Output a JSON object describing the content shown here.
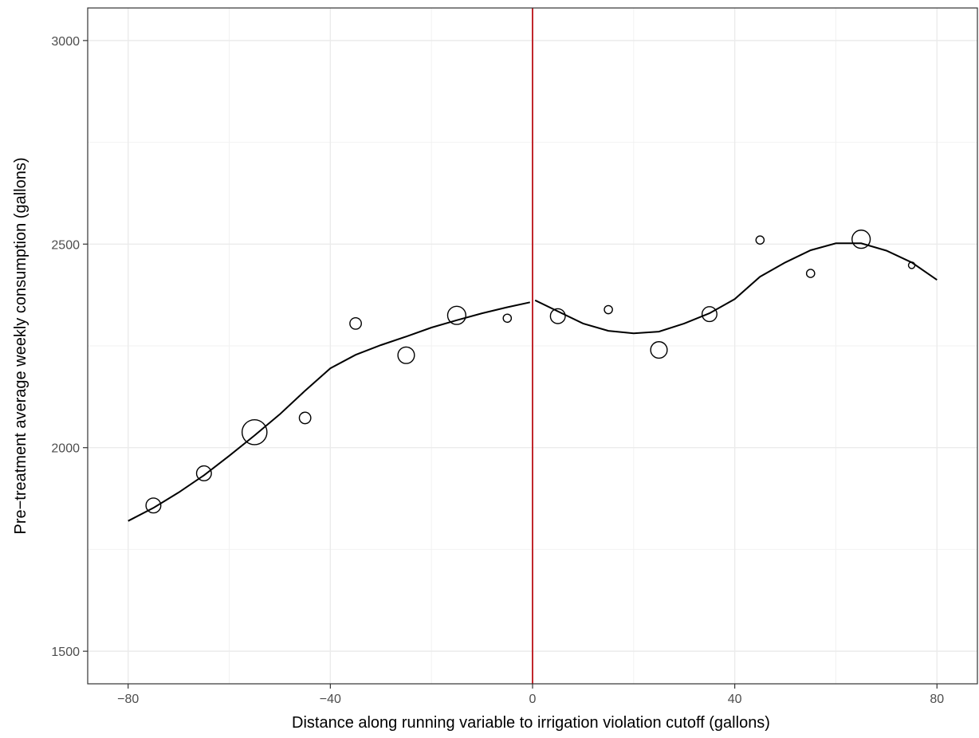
{
  "chart_data": {
    "type": "scatter",
    "title": "",
    "xlabel": "Distance along running variable to irrigation violation cutoff (gallons)",
    "ylabel": "Pre−treatment average weekly consumption (gallons)",
    "xlim": [
      -88,
      88
    ],
    "ylim": [
      1420,
      3080
    ],
    "x_ticks": [
      -80,
      -40,
      0,
      40,
      80
    ],
    "x_tick_labels": [
      "−80",
      "−40",
      "0",
      "40",
      "80"
    ],
    "y_ticks": [
      1500,
      2000,
      2500,
      3000
    ],
    "y_tick_labels": [
      "1500",
      "2000",
      "2500",
      "3000"
    ],
    "grid": true,
    "cutoff_line": {
      "x": 0,
      "color": "#c1272d"
    },
    "points": [
      {
        "x": -75,
        "y": 1858,
        "size": 3
      },
      {
        "x": -65,
        "y": 1937,
        "size": 3
      },
      {
        "x": -55,
        "y": 2038,
        "size": 6
      },
      {
        "x": -45,
        "y": 2073,
        "size": 2
      },
      {
        "x": -35,
        "y": 2305,
        "size": 2
      },
      {
        "x": -25,
        "y": 2227,
        "size": 3.5
      },
      {
        "x": -15,
        "y": 2325,
        "size": 4
      },
      {
        "x": -5,
        "y": 2318,
        "size": 1
      },
      {
        "x": 5,
        "y": 2323,
        "size": 3
      },
      {
        "x": 15,
        "y": 2339,
        "size": 1
      },
      {
        "x": 25,
        "y": 2240,
        "size": 3.5
      },
      {
        "x": 35,
        "y": 2328,
        "size": 3
      },
      {
        "x": 45,
        "y": 2510,
        "size": 1
      },
      {
        "x": 55,
        "y": 2428,
        "size": 1
      },
      {
        "x": 65,
        "y": 2512,
        "size": 4
      },
      {
        "x": 75,
        "y": 2448,
        "size": 0.5
      }
    ],
    "fit_left": [
      [
        -80,
        1820
      ],
      [
        -75,
        1852
      ],
      [
        -70,
        1890
      ],
      [
        -65,
        1932
      ],
      [
        -60,
        1980
      ],
      [
        -55,
        2030
      ],
      [
        -50,
        2082
      ],
      [
        -45,
        2140
      ],
      [
        -40,
        2195
      ],
      [
        -35,
        2228
      ],
      [
        -30,
        2252
      ],
      [
        -25,
        2273
      ],
      [
        -20,
        2295
      ],
      [
        -15,
        2313
      ],
      [
        -10,
        2330
      ],
      [
        -5,
        2345
      ],
      [
        -0.5,
        2357
      ]
    ],
    "fit_right": [
      [
        0.5,
        2362
      ],
      [
        5,
        2335
      ],
      [
        10,
        2305
      ],
      [
        15,
        2287
      ],
      [
        20,
        2281
      ],
      [
        25,
        2285
      ],
      [
        30,
        2305
      ],
      [
        35,
        2330
      ],
      [
        40,
        2365
      ],
      [
        45,
        2420
      ],
      [
        50,
        2455
      ],
      [
        55,
        2485
      ],
      [
        60,
        2502
      ],
      [
        65,
        2502
      ],
      [
        70,
        2484
      ],
      [
        75,
        2455
      ],
      [
        80,
        2412
      ]
    ]
  }
}
